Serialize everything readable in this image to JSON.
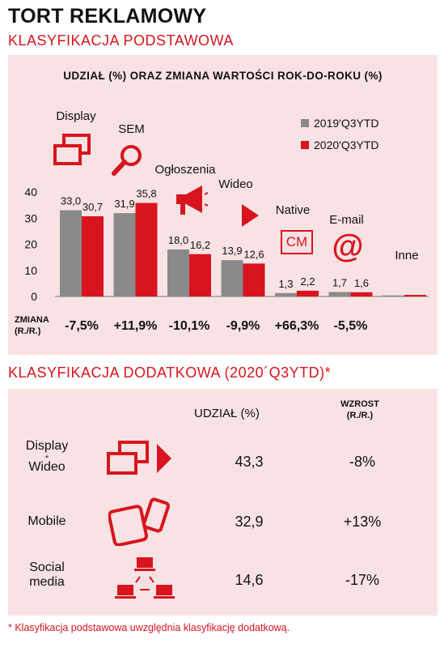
{
  "header": {
    "title": "TORT REKLAMOWY",
    "section1": "KLASYFIKACJA PODSTAWOWA",
    "section2": "KLASYFIKACJA DODATKOWA (2020´Q3YTD)*"
  },
  "chart_data": {
    "type": "bar",
    "title": "UDZIAŁ (%) ORAZ ZMIANA WARTOŚCI ROK-DO-ROKU (%)",
    "categories": [
      "Display",
      "SEM",
      "Ogłoszenia",
      "Wideo",
      "Native",
      "E-mail",
      "Inne"
    ],
    "series": [
      {
        "name": "2019'Q3YTD",
        "values": [
          33.0,
          31.9,
          18.0,
          13.9,
          1.3,
          1.7,
          0.4
        ],
        "labels": [
          "33,0",
          "31,9",
          "18,0",
          "13,9",
          "1,3",
          "1,7",
          ""
        ],
        "color": "#8a8a8a"
      },
      {
        "name": "2020'Q3YTD",
        "values": [
          30.7,
          35.8,
          16.2,
          12.6,
          2.2,
          1.6,
          0.6
        ],
        "labels": [
          "30,7",
          "35,8",
          "16,2",
          "12,6",
          "2,2",
          "1,6",
          ""
        ],
        "color": "#d8141e"
      }
    ],
    "yticks": [
      "0",
      "10",
      "20",
      "30",
      "40"
    ],
    "ylim": [
      0,
      40
    ],
    "grid": false,
    "legend_position": "top-right",
    "change_label": "ZMIANA (R./R.)",
    "changes": [
      "-7,5%",
      "+11,9%",
      "-10,1%",
      "-9,9%",
      "+66,3%",
      "-5,5%"
    ]
  },
  "icons": {
    "display": "display-windows-icon",
    "sem": "magnifier-icon",
    "ogloszenia": "megaphone-icon",
    "wideo": "play-icon",
    "native_text": "CM",
    "email": "at-icon"
  },
  "secondary": {
    "col_share": "UDZIAŁ (%)",
    "col_growth_line1": "WZROST",
    "col_growth_line2": "(R./R.)",
    "rows": [
      {
        "label_line1": "Display",
        "label_line2": "+",
        "label_line3": "Wideo",
        "share": "43,3",
        "growth": "-8%"
      },
      {
        "label_line1": "Mobile",
        "share": "32,9",
        "growth": "+13%"
      },
      {
        "label_line1": "Social",
        "label_line2": "media",
        "share": "14,6",
        "growth": "-17%"
      }
    ]
  },
  "footnote": "* Klasyfikacja podstawowa uwzględnia klasyfikację dodatkową.",
  "colors": {
    "accent": "#d8141e",
    "gray": "#8a8a8a",
    "panel": "#f9e2e3"
  }
}
